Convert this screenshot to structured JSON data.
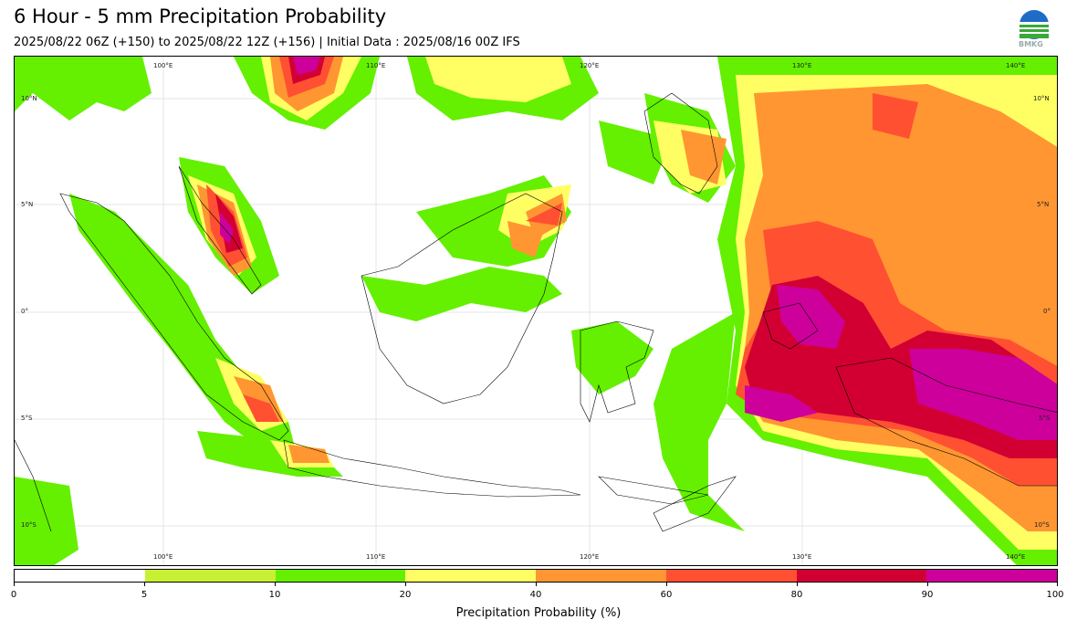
{
  "title": "6 Hour - 5 mm Precipitation Probability",
  "subtitle": "2025/08/22 06Z (+150) to 2025/08/22 12Z (+156) | Initial Data : 2025/08/16 00Z IFS",
  "logo_text": "BMKG",
  "logo_icon": "bmkg-logo-icon",
  "map": {
    "lon_labels": [
      "100°E",
      "110°E",
      "120°E",
      "130°E",
      "140°E"
    ],
    "lat_labels": [
      "10°N",
      "5°N",
      "0°",
      "5°S",
      "10°S"
    ]
  },
  "colorbar": {
    "label": "Precipitation Probability (%)",
    "ticks": [
      "0",
      "5",
      "10",
      "20",
      "40",
      "60",
      "80",
      "90",
      "100"
    ],
    "colors": [
      "#ffffff",
      "#c8f032",
      "#64f000",
      "#ffff64",
      "#ff9632",
      "#ff5032",
      "#d20032",
      "#cd009b"
    ]
  }
}
